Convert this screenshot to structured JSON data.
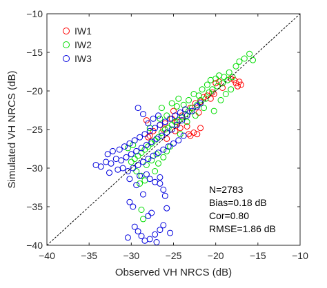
{
  "chart_data": {
    "type": "scatter",
    "xlabel": "Observed VH NRCS (dB)",
    "ylabel": "Simulated VH NRCS (dB)",
    "xlim": [
      -40,
      -10
    ],
    "ylim": [
      -40,
      -10
    ],
    "xticks": [
      -40,
      -35,
      -30,
      -25,
      -20,
      -15,
      -10
    ],
    "yticks": [
      -40,
      -35,
      -30,
      -25,
      -20,
      -15,
      -10
    ],
    "xtick_labels": [
      "−40",
      "−35",
      "−30",
      "−25",
      "−20",
      "−15",
      "−10"
    ],
    "ytick_labels": [
      "−40",
      "−35",
      "−30",
      "−25",
      "−20",
      "−15",
      "−10"
    ],
    "grid": false,
    "reference_line": "1:1 dashed",
    "legend_position": "top-left",
    "marker": "open-circle",
    "series": [
      {
        "name": "IW1",
        "color": "#ff0000",
        "points": [
          [
            -25.2,
            -23.6
          ],
          [
            -24.6,
            -24.0
          ],
          [
            -24.0,
            -23.2
          ],
          [
            -23.6,
            -22.4
          ],
          [
            -23.0,
            -22.2
          ],
          [
            -22.4,
            -21.6
          ],
          [
            -21.8,
            -21.4
          ],
          [
            -21.4,
            -20.8
          ],
          [
            -21.0,
            -20.6
          ],
          [
            -20.6,
            -21.0
          ],
          [
            -20.2,
            -20.4
          ],
          [
            -23.2,
            -25.6
          ],
          [
            -23.0,
            -25.8
          ],
          [
            -22.6,
            -25.4
          ],
          [
            -22.2,
            -25.6
          ],
          [
            -21.8,
            -24.8
          ],
          [
            -17.8,
            -18.6
          ],
          [
            -17.6,
            -19.0
          ],
          [
            -17.4,
            -19.4
          ],
          [
            -17.2,
            -18.8
          ],
          [
            -17.0,
            -19.2
          ],
          [
            -18.2,
            -18.4
          ],
          [
            -19.2,
            -19.6
          ],
          [
            -19.6,
            -18.8
          ],
          [
            -20.0,
            -19.0
          ],
          [
            -26.6,
            -24.4
          ],
          [
            -27.4,
            -25.2
          ],
          [
            -28.0,
            -26.0
          ],
          [
            -27.8,
            -25.8
          ],
          [
            -26.2,
            -25.0
          ],
          [
            -25.8,
            -26.2
          ],
          [
            -24.8,
            -25.2
          ],
          [
            -24.2,
            -24.8
          ],
          [
            -28.2,
            -23.8
          ],
          [
            -22.0,
            -22.8
          ],
          [
            -23.4,
            -24.6
          ],
          [
            -26.0,
            -24.2
          ],
          [
            -25.0,
            -22.6
          ],
          [
            -20.4,
            -20.2
          ]
        ]
      },
      {
        "name": "IW2",
        "color": "#00dd00",
        "points": [
          [
            -17.2,
            -16.2
          ],
          [
            -16.6,
            -15.8
          ],
          [
            -16.0,
            -15.2
          ],
          [
            -15.6,
            -16.0
          ],
          [
            -17.6,
            -16.8
          ],
          [
            -18.0,
            -18.2
          ],
          [
            -18.6,
            -18.6
          ],
          [
            -19.2,
            -19.0
          ],
          [
            -19.8,
            -19.4
          ],
          [
            -20.4,
            -19.8
          ],
          [
            -20.8,
            -20.2
          ],
          [
            -21.2,
            -21.0
          ],
          [
            -21.8,
            -21.2
          ],
          [
            -22.2,
            -21.8
          ],
          [
            -22.8,
            -22.2
          ],
          [
            -23.2,
            -22.6
          ],
          [
            -23.6,
            -23.0
          ],
          [
            -24.0,
            -23.4
          ],
          [
            -24.4,
            -23.8
          ],
          [
            -24.8,
            -24.0
          ],
          [
            -25.2,
            -24.4
          ],
          [
            -25.6,
            -24.8
          ],
          [
            -26.0,
            -25.0
          ],
          [
            -26.4,
            -25.4
          ],
          [
            -26.8,
            -26.0
          ],
          [
            -27.2,
            -26.4
          ],
          [
            -27.6,
            -26.8
          ],
          [
            -28.0,
            -27.2
          ],
          [
            -28.4,
            -27.6
          ],
          [
            -28.8,
            -28.0
          ],
          [
            -29.2,
            -28.4
          ],
          [
            -29.6,
            -28.8
          ],
          [
            -30.0,
            -29.2
          ],
          [
            -29.4,
            -30.4
          ],
          [
            -28.8,
            -31.0
          ],
          [
            -28.4,
            -31.6
          ],
          [
            -29.0,
            -32.0
          ],
          [
            -28.8,
            -35.4
          ],
          [
            -28.6,
            -36.6
          ],
          [
            -27.2,
            -30.4
          ],
          [
            -26.8,
            -29.4
          ],
          [
            -26.2,
            -28.6
          ],
          [
            -25.8,
            -27.8
          ],
          [
            -25.4,
            -27.2
          ],
          [
            -24.2,
            -25.6
          ],
          [
            -23.8,
            -21.8
          ],
          [
            -23.2,
            -21.2
          ],
          [
            -22.6,
            -20.4
          ],
          [
            -22.0,
            -20.6
          ],
          [
            -21.6,
            -19.8
          ],
          [
            -21.0,
            -19.2
          ],
          [
            -20.6,
            -18.6
          ],
          [
            -20.0,
            -18.4
          ],
          [
            -19.6,
            -18.0
          ],
          [
            -19.0,
            -18.2
          ],
          [
            -18.4,
            -17.6
          ],
          [
            -24.6,
            -22.0
          ],
          [
            -25.8,
            -23.2
          ],
          [
            -26.6,
            -23.6
          ],
          [
            -27.8,
            -24.8
          ],
          [
            -26.4,
            -22.2
          ],
          [
            -25.2,
            -21.6
          ],
          [
            -24.4,
            -21.0
          ],
          [
            -21.4,
            -22.2
          ],
          [
            -20.2,
            -22.6
          ],
          [
            -19.4,
            -21.2
          ],
          [
            -18.8,
            -20.4
          ],
          [
            -18.2,
            -19.8
          ],
          [
            -22.4,
            -23.2
          ],
          [
            -23.4,
            -24.0
          ],
          [
            -27.0,
            -28.2
          ],
          [
            -27.6,
            -29.0
          ],
          [
            -28.2,
            -29.6
          ],
          [
            -30.4,
            -27.4
          ],
          [
            -29.8,
            -27.0
          ]
        ]
      },
      {
        "name": "IW3",
        "color": "#0000dd",
        "points": [
          [
            -34.2,
            -29.6
          ],
          [
            -33.6,
            -29.8
          ],
          [
            -33.0,
            -29.2
          ],
          [
            -32.4,
            -29.4
          ],
          [
            -31.8,
            -28.8
          ],
          [
            -31.2,
            -29.0
          ],
          [
            -30.6,
            -28.6
          ],
          [
            -30.0,
            -28.2
          ],
          [
            -29.4,
            -27.8
          ],
          [
            -28.8,
            -27.4
          ],
          [
            -28.2,
            -27.0
          ],
          [
            -27.6,
            -26.6
          ],
          [
            -27.0,
            -26.2
          ],
          [
            -26.4,
            -25.8
          ],
          [
            -25.8,
            -25.4
          ],
          [
            -25.2,
            -25.0
          ],
          [
            -24.6,
            -24.4
          ],
          [
            -24.0,
            -23.8
          ],
          [
            -23.4,
            -23.2
          ],
          [
            -22.8,
            -22.6
          ],
          [
            -22.2,
            -22.0
          ],
          [
            -21.8,
            -21.6
          ],
          [
            -32.8,
            -28.2
          ],
          [
            -32.2,
            -27.8
          ],
          [
            -31.4,
            -27.6
          ],
          [
            -30.8,
            -27.2
          ],
          [
            -30.2,
            -26.8
          ],
          [
            -29.6,
            -26.4
          ],
          [
            -29.0,
            -26.0
          ],
          [
            -28.4,
            -25.6
          ],
          [
            -27.8,
            -25.2
          ],
          [
            -27.2,
            -24.8
          ],
          [
            -26.6,
            -24.4
          ],
          [
            -26.0,
            -24.0
          ],
          [
            -25.4,
            -23.6
          ],
          [
            -24.8,
            -23.2
          ],
          [
            -24.2,
            -22.8
          ],
          [
            -23.6,
            -22.4
          ],
          [
            -28.0,
            -24.2
          ],
          [
            -27.4,
            -23.6
          ],
          [
            -26.8,
            -23.2
          ],
          [
            -29.2,
            -22.2
          ],
          [
            -28.6,
            -23.0
          ],
          [
            -31.0,
            -30.0
          ],
          [
            -30.4,
            -30.4
          ],
          [
            -29.8,
            -30.0
          ],
          [
            -29.2,
            -29.6
          ],
          [
            -28.6,
            -29.2
          ],
          [
            -28.0,
            -28.8
          ],
          [
            -27.4,
            -28.4
          ],
          [
            -26.8,
            -28.0
          ],
          [
            -26.2,
            -27.6
          ],
          [
            -25.6,
            -27.2
          ],
          [
            -25.0,
            -26.8
          ],
          [
            -24.4,
            -26.4
          ],
          [
            -23.8,
            -25.8
          ],
          [
            -28.2,
            -30.8
          ],
          [
            -27.8,
            -31.4
          ],
          [
            -27.2,
            -31.8
          ],
          [
            -26.6,
            -32.0
          ],
          [
            -29.0,
            -31.0
          ],
          [
            -26.6,
            -31.2
          ],
          [
            -26.2,
            -32.8
          ],
          [
            -26.0,
            -33.6
          ],
          [
            -25.8,
            -35.2
          ],
          [
            -26.2,
            -37.4
          ],
          [
            -26.6,
            -38.0
          ],
          [
            -27.2,
            -38.6
          ],
          [
            -27.8,
            -39.2
          ],
          [
            -28.4,
            -39.4
          ],
          [
            -28.8,
            -38.8
          ],
          [
            -29.2,
            -38.2
          ],
          [
            -29.6,
            -37.6
          ],
          [
            -28.0,
            -36.2
          ],
          [
            -27.6,
            -35.8
          ],
          [
            -29.8,
            -35.0
          ],
          [
            -30.2,
            -34.4
          ],
          [
            -28.6,
            -33.4
          ],
          [
            -29.4,
            -32.2
          ],
          [
            -27.0,
            -39.6
          ],
          [
            -25.4,
            -38.4
          ],
          [
            -30.4,
            -39.0
          ],
          [
            -32.6,
            -30.6
          ],
          [
            -31.6,
            -30.2
          ],
          [
            -30.2,
            -31.4
          ]
        ]
      }
    ],
    "annotations": [
      "N=2783",
      "Bias=0.18 dB",
      "Cor=0.80",
      "RMSE=1.86 dB"
    ]
  }
}
